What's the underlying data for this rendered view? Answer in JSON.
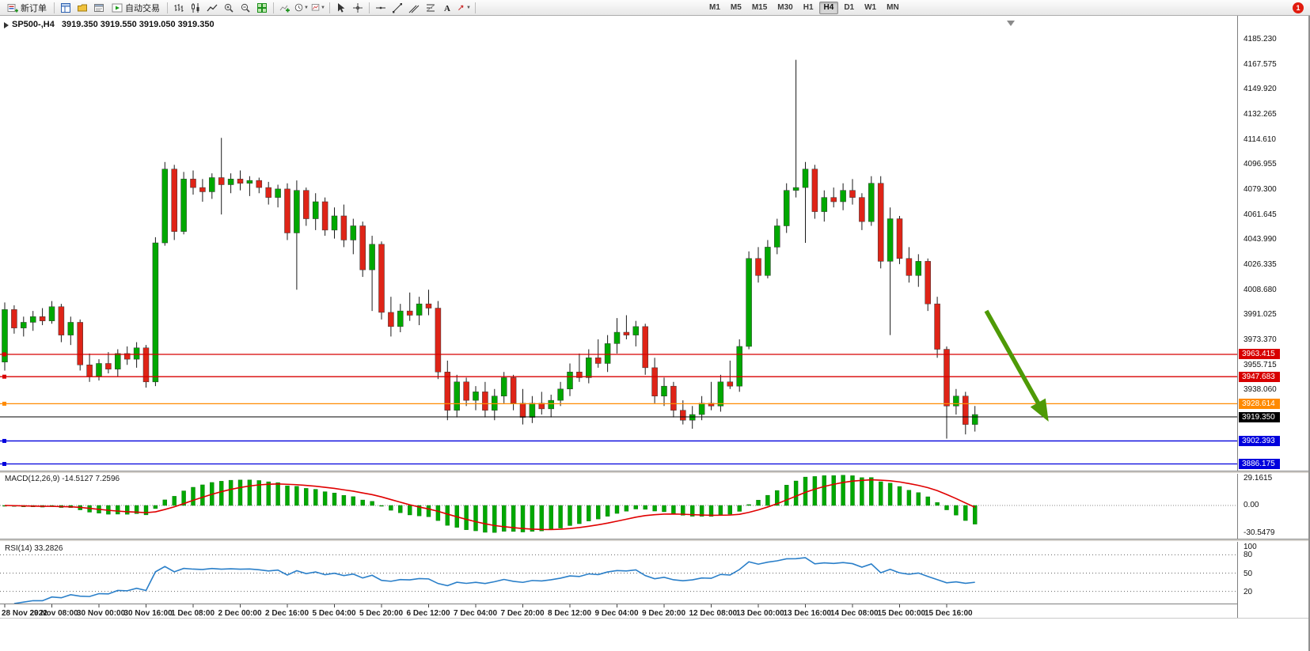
{
  "toolbar": {
    "new_order_label": "新订单",
    "auto_trading_label": "自动交易",
    "timeframes": [
      "M1",
      "M5",
      "M15",
      "M30",
      "H1",
      "H4",
      "D1",
      "W1",
      "MN"
    ],
    "active_timeframe": "H4",
    "notification_count": "1"
  },
  "chart": {
    "symbol": "SP500-,H4",
    "ohlc": "3919.350 3919.550 3919.050 3919.350",
    "colors": {
      "up": "#00a800",
      "down": "#df2417",
      "wick": "#1a1a1a",
      "arrow": "#4e9a06",
      "macd_hist": "#00a800",
      "macd_signal": "#e00000",
      "rsi_line": "#2a7fc9"
    },
    "scale": {
      "price_min": 3882,
      "price_max": 4192
    },
    "price_ticks": [
      "4185.230",
      "4167.575",
      "4149.920",
      "4132.265",
      "4114.610",
      "4096.955",
      "4079.300",
      "4061.645",
      "4043.990",
      "4026.335",
      "4008.680",
      "3991.025",
      "3973.370",
      "3955.715",
      "3938.060"
    ],
    "levels": [
      {
        "price": 3963.415,
        "label": "3963.415",
        "color": "#d80000"
      },
      {
        "price": 3947.683,
        "label": "3947.683",
        "color": "#d80000"
      },
      {
        "price": 3928.614,
        "label": "3928.614",
        "color": "#ff8a00"
      },
      {
        "price": 3919.35,
        "label": "3919.350",
        "color": "#000000",
        "bid": true
      },
      {
        "price": 3902.393,
        "label": "3902.393",
        "color": "#0000dd"
      },
      {
        "price": 3886.175,
        "label": "3886.175",
        "color": "#0000dd"
      }
    ],
    "candles": [
      [
        3958,
        4000,
        3952,
        3995
      ],
      [
        3995,
        3998,
        3978,
        3982
      ],
      [
        3982,
        3990,
        3976,
        3986
      ],
      [
        3986,
        3994,
        3980,
        3990
      ],
      [
        3990,
        3996,
        3984,
        3987
      ],
      [
        3987,
        4001,
        3985,
        3997
      ],
      [
        3997,
        3999,
        3972,
        3977
      ],
      [
        3977,
        3990,
        3970,
        3986
      ],
      [
        3986,
        3988,
        3952,
        3956
      ],
      [
        3956,
        3964,
        3944,
        3948
      ],
      [
        3948,
        3960,
        3945,
        3957
      ],
      [
        3957,
        3965,
        3950,
        3953
      ],
      [
        3953,
        3967,
        3948,
        3964
      ],
      [
        3964,
        3969,
        3956,
        3960
      ],
      [
        3960,
        3972,
        3954,
        3968
      ],
      [
        3968,
        3970,
        3940,
        3944
      ],
      [
        3944,
        4046,
        3941,
        4042
      ],
      [
        4042,
        4099,
        4040,
        4094
      ],
      [
        4094,
        4097,
        4044,
        4050
      ],
      [
        4050,
        4092,
        4048,
        4087
      ],
      [
        4087,
        4093,
        4076,
        4081
      ],
      [
        4081,
        4087,
        4071,
        4078
      ],
      [
        4078,
        4091,
        4073,
        4088
      ],
      [
        4088,
        4116,
        4062,
        4083
      ],
      [
        4083,
        4091,
        4077,
        4087
      ],
      [
        4087,
        4093,
        4079,
        4084
      ],
      [
        4084,
        4089,
        4075,
        4086
      ],
      [
        4086,
        4088,
        4077,
        4081
      ],
      [
        4081,
        4085,
        4069,
        4074
      ],
      [
        4074,
        4083,
        4067,
        4080
      ],
      [
        4080,
        4084,
        4044,
        4049
      ],
      [
        4049,
        4086,
        4009,
        4079
      ],
      [
        4079,
        4081,
        4054,
        4059
      ],
      [
        4059,
        4077,
        4051,
        4071
      ],
      [
        4071,
        4074,
        4047,
        4051
      ],
      [
        4051,
        4067,
        4045,
        4061
      ],
      [
        4061,
        4069,
        4039,
        4044
      ],
      [
        4044,
        4059,
        4034,
        4054
      ],
      [
        4054,
        4057,
        4018,
        4023
      ],
      [
        4023,
        4047,
        3994,
        4041
      ],
      [
        4041,
        4043,
        3988,
        3993
      ],
      [
        3993,
        4004,
        3976,
        3983
      ],
      [
        3983,
        3999,
        3979,
        3994
      ],
      [
        3994,
        4007,
        3987,
        3991
      ],
      [
        3991,
        4004,
        3984,
        3999
      ],
      [
        3999,
        4009,
        3991,
        3996
      ],
      [
        3996,
        4001,
        3946,
        3951
      ],
      [
        3951,
        3959,
        3917,
        3924
      ],
      [
        3924,
        3949,
        3919,
        3944
      ],
      [
        3944,
        3947,
        3927,
        3931
      ],
      [
        3931,
        3941,
        3924,
        3937
      ],
      [
        3937,
        3944,
        3919,
        3924
      ],
      [
        3924,
        3939,
        3917,
        3934
      ],
      [
        3934,
        3951,
        3929,
        3947
      ],
      [
        3947,
        3949,
        3924,
        3929
      ],
      [
        3929,
        3939,
        3914,
        3919
      ],
      [
        3919,
        3934,
        3915,
        3929
      ],
      [
        3929,
        3937,
        3921,
        3925
      ],
      [
        3925,
        3935,
        3919,
        3931
      ],
      [
        3931,
        3944,
        3927,
        3939
      ],
      [
        3939,
        3957,
        3934,
        3951
      ],
      [
        3951,
        3964,
        3944,
        3947
      ],
      [
        3947,
        3967,
        3943,
        3961
      ],
      [
        3961,
        3974,
        3954,
        3957
      ],
      [
        3957,
        3977,
        3951,
        3971
      ],
      [
        3971,
        3989,
        3964,
        3979
      ],
      [
        3979,
        3991,
        3974,
        3977
      ],
      [
        3977,
        3987,
        3969,
        3983
      ],
      [
        3983,
        3985,
        3949,
        3954
      ],
      [
        3954,
        3961,
        3929,
        3934
      ],
      [
        3934,
        3947,
        3927,
        3941
      ],
      [
        3941,
        3944,
        3919,
        3924
      ],
      [
        3924,
        3931,
        3914,
        3917
      ],
      [
        3917,
        3927,
        3911,
        3921
      ],
      [
        3921,
        3934,
        3917,
        3929
      ],
      [
        3929,
        3944,
        3924,
        3927
      ],
      [
        3927,
        3949,
        3923,
        3944
      ],
      [
        3944,
        3959,
        3939,
        3941
      ],
      [
        3941,
        3974,
        3937,
        3969
      ],
      [
        3969,
        4036,
        3967,
        4031
      ],
      [
        4031,
        4039,
        4014,
        4019
      ],
      [
        4019,
        4044,
        4017,
        4039
      ],
      [
        4039,
        4059,
        4034,
        4054
      ],
      [
        4054,
        4084,
        4049,
        4079
      ],
      [
        4079,
        4171,
        4074,
        4081
      ],
      [
        4081,
        4099,
        4042,
        4094
      ],
      [
        4094,
        4097,
        4059,
        4064
      ],
      [
        4064,
        4079,
        4057,
        4074
      ],
      [
        4074,
        4081,
        4067,
        4071
      ],
      [
        4071,
        4084,
        4065,
        4079
      ],
      [
        4079,
        4087,
        4069,
        4074
      ],
      [
        4074,
        4077,
        4051,
        4057
      ],
      [
        4057,
        4089,
        4054,
        4084
      ],
      [
        4084,
        4089,
        4024,
        4029
      ],
      [
        4029,
        4067,
        3977,
        4059
      ],
      [
        4059,
        4061,
        4027,
        4031
      ],
      [
        4031,
        4039,
        4014,
        4019
      ],
      [
        4019,
        4034,
        4011,
        4029
      ],
      [
        4029,
        4031,
        3994,
        3999
      ],
      [
        3999,
        4004,
        3961,
        3967
      ],
      [
        3967,
        3969,
        3904,
        3927
      ],
      [
        3927,
        3939,
        3921,
        3934
      ],
      [
        3934,
        3937,
        3907,
        3914
      ],
      [
        3914,
        3927,
        3909,
        3921
      ]
    ]
  },
  "macd": {
    "label": "MACD(12,26,9) -14.5127 7.2596",
    "fast": 12,
    "slow": 26,
    "smooth": 9,
    "ticks": [
      {
        "v": 29.1615,
        "label": "29.1615"
      },
      {
        "v": 0,
        "label": "0.00"
      },
      {
        "v": -30.5479,
        "label": "-30.5479"
      }
    ]
  },
  "rsi": {
    "label": "RSI(14) 33.2826",
    "period": 14,
    "ticks": [
      "100",
      "80",
      "50",
      "20"
    ],
    "levels": [
      80,
      50,
      20
    ]
  },
  "time_axis": [
    "28 Nov 2022",
    "29 Nov 08:00",
    "30 Nov 00:00",
    "30 Nov 16:00",
    "1 Dec 08:00",
    "2 Dec 00:00",
    "2 Dec 16:00",
    "5 Dec 04:00",
    "5 Dec 20:00",
    "6 Dec 12:00",
    "7 Dec 04:00",
    "7 Dec 20:00",
    "8 Dec 12:00",
    "9 Dec 04:00",
    "9 Dec 20:00",
    "12 Dec 08:00",
    "13 Dec 00:00",
    "13 Dec 16:00",
    "14 Dec 08:00",
    "15 Dec 00:00",
    "15 Dec 16:00"
  ]
}
